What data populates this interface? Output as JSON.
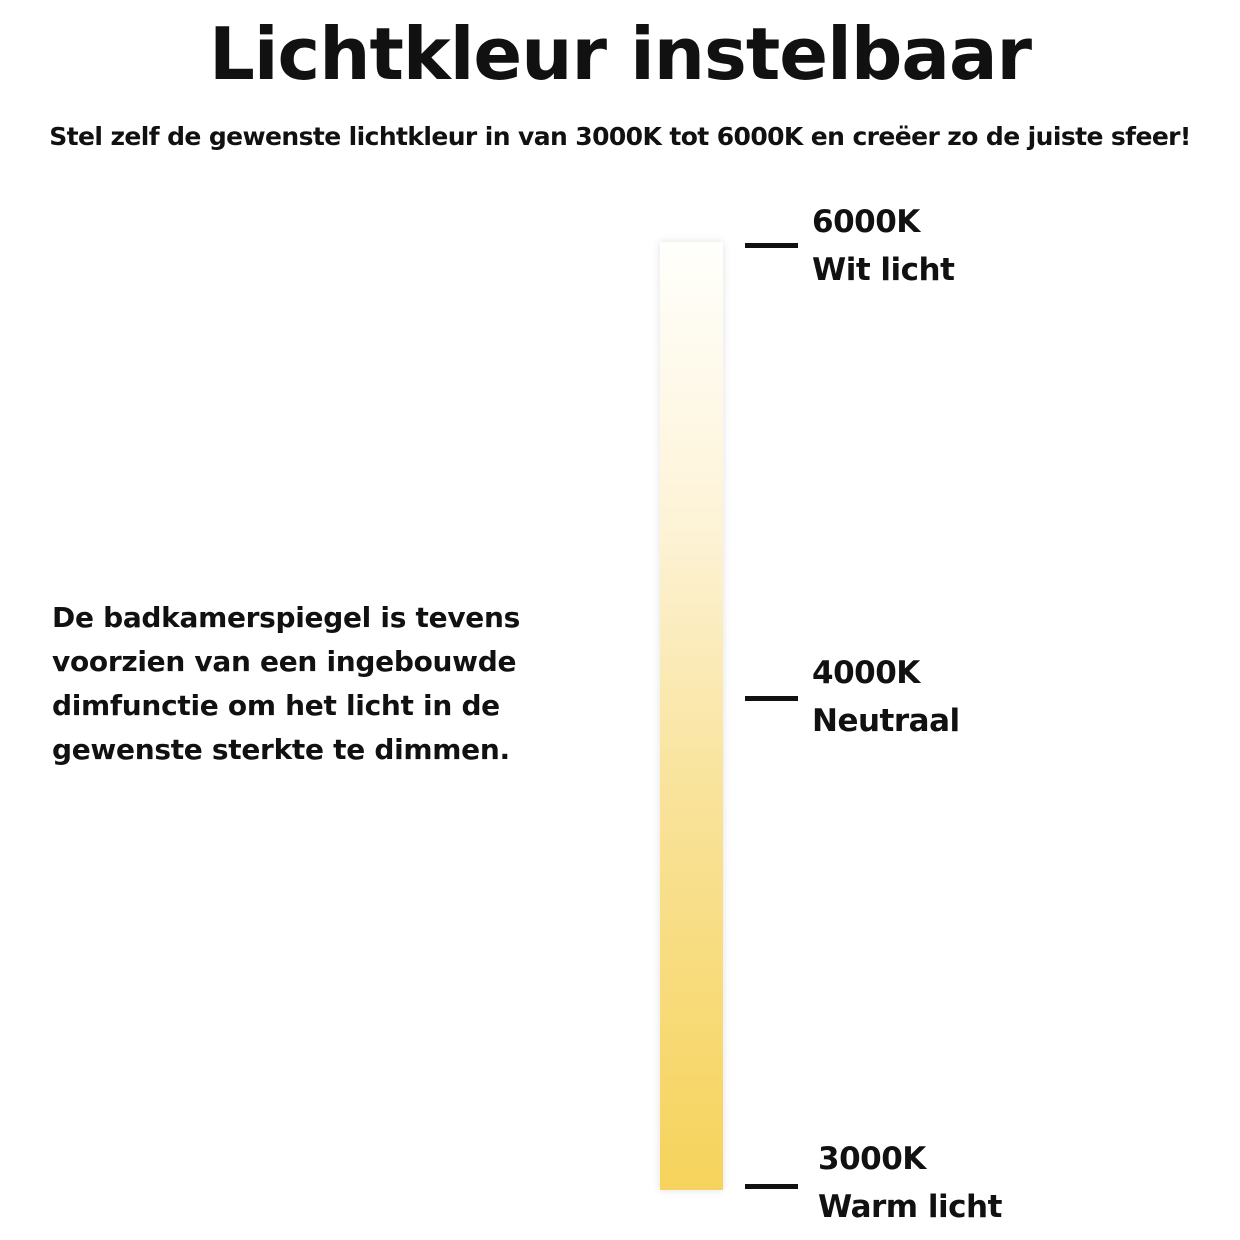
{
  "title": "Lichtkleur instelbaar",
  "subtitle": "Stel zelf de gewenste lichtkleur in van 3000K tot 6000K en creëer zo de juiste sfeer!",
  "description": [
    "De badkamerspiegel is tevens",
    "voorzien van een ingebouwde",
    "dimfunctie om het licht in de",
    "gewenste sterkte te dimmen."
  ],
  "scale": {
    "gradient_colors": {
      "top": "#fffffc",
      "bottom": "#f6d35c"
    },
    "markers": [
      {
        "value": "6000K",
        "label": "Wit licht"
      },
      {
        "value": "4000K",
        "label": "Neutraal"
      },
      {
        "value": "3000K",
        "label": "Warm licht"
      }
    ]
  }
}
